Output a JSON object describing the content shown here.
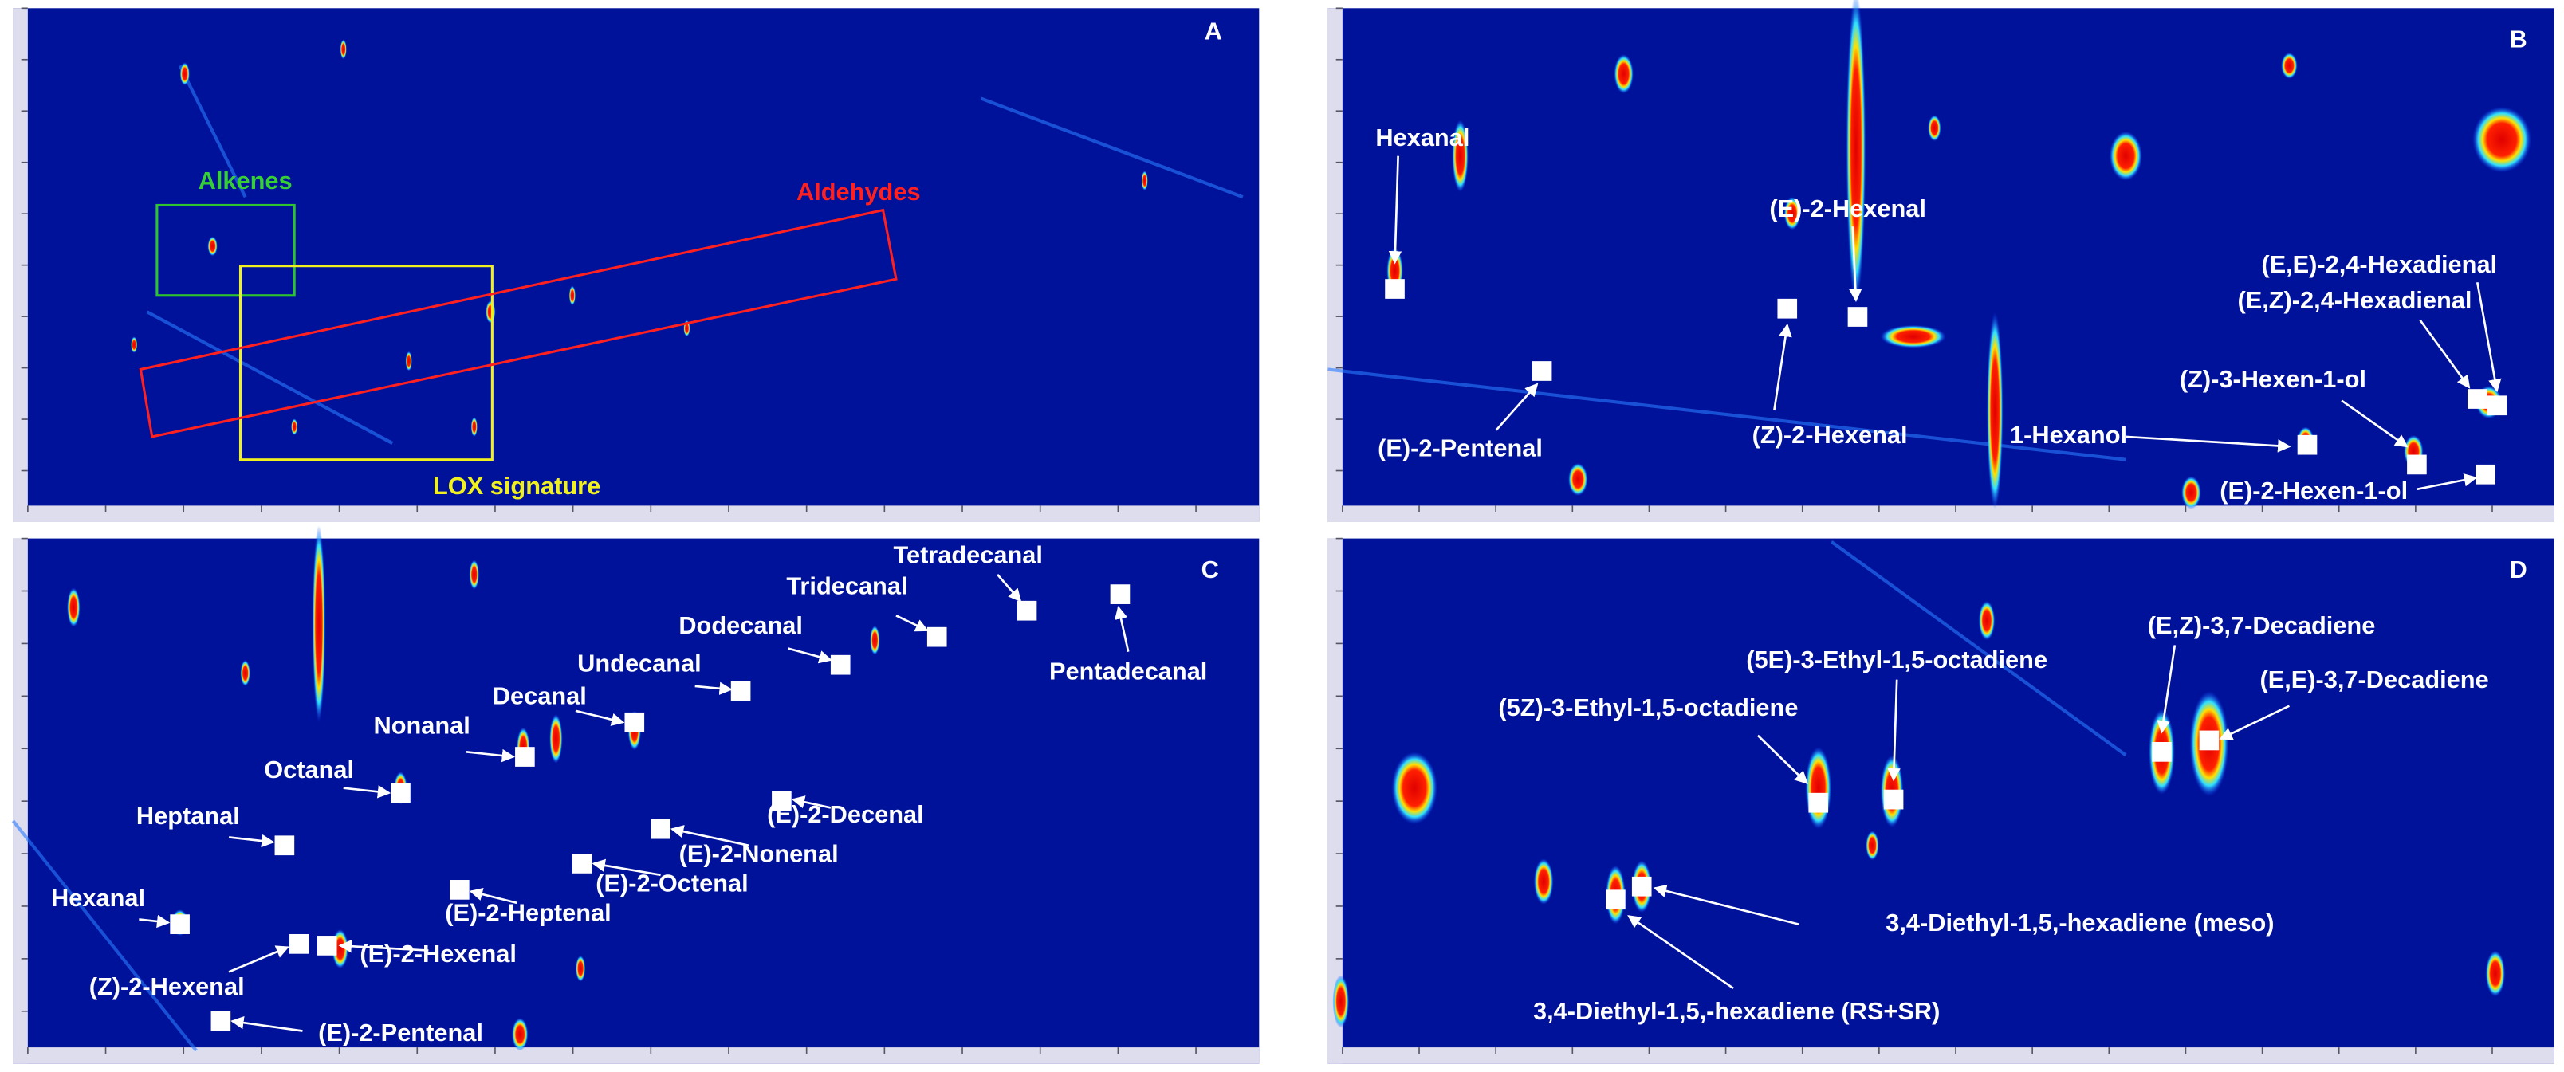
{
  "panels": [
    {
      "letter": "A",
      "labels": [
        "Alkenes",
        "Aldehydes",
        "LOX signature"
      ]
    },
    {
      "letter": "B",
      "labels": [
        "Hexanal",
        "(E)-2-Hexenal",
        "(E,E)-2,4-Hexadienal",
        "(E,Z)-2,4-Hexadienal",
        "(Z)-3-Hexen-1-ol",
        "1-Hexanol",
        "(E)-2-Hexen-1-ol",
        "(E)-2-Pentenal",
        "(Z)-2-Hexenal"
      ]
    },
    {
      "letter": "C",
      "labels": [
        "Tetradecanal",
        "Tridecanal",
        "Pentadecanal",
        "Dodecanal",
        "Undecanal",
        "Decanal",
        "Nonanal",
        "Octanal",
        "Heptanal",
        "(E)-2-Decenal",
        "(E)-2-Nonenal",
        "(E)-2-Octenal",
        "(E)-2-Heptenal",
        "Hexanal",
        "(E)-2-Hexenal",
        "(Z)-2-Hexenal",
        "(E)-2-Pentenal"
      ]
    },
    {
      "letter": "D",
      "labels": [
        "(E,Z)-3,7-Decadiene",
        "(E,E)-3,7-Decadiene",
        "(5E)-3-Ethyl-1,5-octadiene",
        "(5Z)-3-Ethyl-1,5-octadiene",
        "3,4-Diethyl-1,5,-hexadiene (meso)",
        "3,4-Diethyl-1,5,-hexadiene (RS+SR)"
      ]
    }
  ]
}
